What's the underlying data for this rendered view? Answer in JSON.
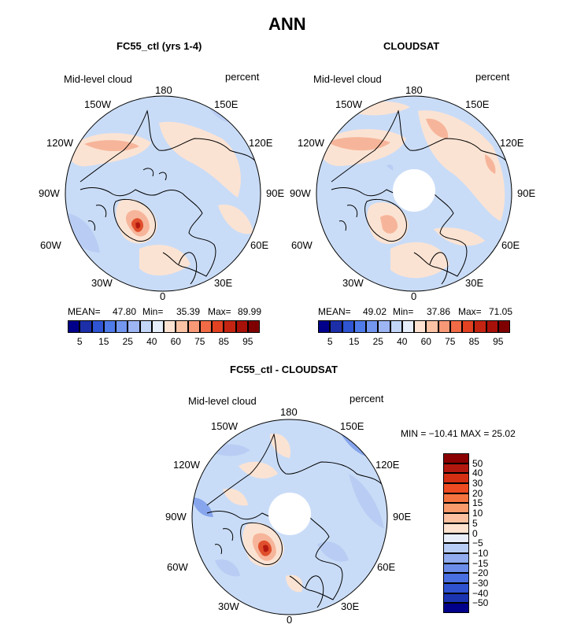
{
  "page_title": "ANN",
  "colors": {
    "base": "#c9dcf7",
    "light": "#fbe3d3",
    "mid": "#f6b59a",
    "strong": "#e04f2c",
    "deep": "#b3180f",
    "blue_light": "#b9cdf4",
    "blue_mid": "#86a5ec",
    "coast": "#000000"
  },
  "panels": [
    {
      "title": "FC55_ctl (yrs 1-4)",
      "variable": "Mid-level cloud",
      "units": "percent",
      "lon_labels": {
        "n": "180",
        "ne1": "150E",
        "ne2": "120E",
        "e": "90E",
        "se1": "60E",
        "se2": "30E",
        "s": "0",
        "sw2": "30W",
        "sw1": "60W",
        "w": "90W",
        "nw2": "120W",
        "nw1": "150W"
      },
      "stats": {
        "mean_label": "MEAN=",
        "mean": "47.80",
        "min_label": "Min=",
        "min": "35.39",
        "max_label": "Max=",
        "max": "89.99"
      },
      "colorbar": {
        "colors": [
          "#00008b",
          "#1d2fa8",
          "#2f55d3",
          "#4f7be8",
          "#7397ef",
          "#9db5f3",
          "#c4d6f8",
          "#e6eefb",
          "#fde2d2",
          "#fbc2a4",
          "#f79877",
          "#f06b46",
          "#e24222",
          "#c42512",
          "#a8110a",
          "#7f0000"
        ],
        "tick_labels": [
          "5",
          "15",
          "25",
          "40",
          "60",
          "75",
          "85",
          "95"
        ]
      }
    },
    {
      "title": "CLOUDSAT",
      "variable": "Mid-level cloud",
      "units": "percent",
      "lon_labels": {
        "n": "180",
        "ne1": "150E",
        "ne2": "120E",
        "e": "90E",
        "se1": "60E",
        "se2": "30E",
        "s": "0",
        "sw2": "30W",
        "sw1": "60W",
        "w": "90W",
        "nw2": "120W",
        "nw1": "150W"
      },
      "stats": {
        "mean_label": "MEAN=",
        "mean": "49.02",
        "min_label": "Min=",
        "min": "37.86",
        "max_label": "Max=",
        "max": "71.05"
      },
      "colorbar": {
        "colors": [
          "#00008b",
          "#1d2fa8",
          "#2f55d3",
          "#4f7be8",
          "#7397ef",
          "#9db5f3",
          "#c4d6f8",
          "#e6eefb",
          "#fde2d2",
          "#fbc2a4",
          "#f79877",
          "#f06b46",
          "#e24222",
          "#c42512",
          "#a8110a",
          "#7f0000"
        ],
        "tick_labels": [
          "5",
          "15",
          "25",
          "40",
          "60",
          "75",
          "85",
          "95"
        ]
      }
    },
    {
      "title": "FC55_ctl - CLOUDSAT",
      "variable": "Mid-level cloud",
      "units": "percent",
      "lon_labels": {
        "n": "180",
        "ne1": "150E",
        "ne2": "120E",
        "e": "90E",
        "se1": "60E",
        "se2": "30E",
        "s": "0",
        "sw2": "30W",
        "sw1": "60W",
        "w": "90W",
        "nw2": "120W",
        "nw1": "150W"
      },
      "minmax": "MIN = −10.41 MAX =   25.02",
      "colorbar": {
        "colors": [
          "#8b0000",
          "#b3180f",
          "#d42e13",
          "#ee4b22",
          "#f5733f",
          "#f89a6c",
          "#fbc1a0",
          "#fde3d0",
          "#e8eefa",
          "#b8cdf5",
          "#91adf0",
          "#6b8de9",
          "#4a6fe0",
          "#2f52d0",
          "#1b34b2",
          "#00008b"
        ],
        "tick_labels": [
          "50",
          "40",
          "30",
          "20",
          "15",
          "10",
          "5",
          "0",
          "−5",
          "−10",
          "−15",
          "−20",
          "−30",
          "−40",
          "−50"
        ]
      }
    }
  ]
}
